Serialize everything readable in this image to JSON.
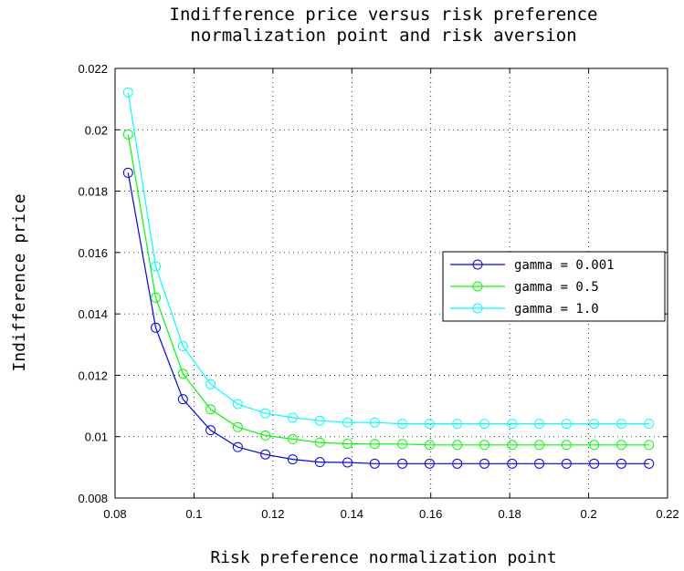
{
  "chart_data": {
    "type": "line",
    "title_lines": [
      "Indifference price versus risk preference",
      "normalization point and risk aversion"
    ],
    "xlabel": "Risk preference normalization point",
    "ylabel": "Indifference price",
    "xlim": [
      0.08,
      0.22
    ],
    "ylim": [
      0.008,
      0.022
    ],
    "xticks": [
      0.08,
      0.1,
      0.12,
      0.14,
      0.16,
      0.18,
      0.2,
      0.22
    ],
    "xtick_labels": [
      "0.08",
      "0.1",
      "0.12",
      "0.14",
      "0.16",
      "0.18",
      "0.2",
      "0.22"
    ],
    "yticks": [
      0.008,
      0.01,
      0.012,
      0.014,
      0.016,
      0.018,
      0.02,
      0.022
    ],
    "ytick_labels": [
      "0.008",
      "0.01",
      "0.012",
      "0.014",
      "0.016",
      "0.018",
      "0.02",
      "0.022"
    ],
    "grid": true,
    "legend_position": "right",
    "x": [
      0.0833,
      0.0903,
      0.0972,
      0.1042,
      0.1111,
      0.1181,
      0.125,
      0.1319,
      0.1389,
      0.1458,
      0.1528,
      0.1597,
      0.1667,
      0.1736,
      0.1806,
      0.1875,
      0.1944,
      0.2014,
      0.2083,
      0.2153
    ],
    "series": [
      {
        "name": "gamma = 0.001",
        "color": "#0000ff",
        "values": [
          0.0186,
          0.01355,
          0.01122,
          0.01021,
          0.00966,
          0.00942,
          0.00926,
          0.00917,
          0.00916,
          0.00912,
          0.00912,
          0.00912,
          0.00912,
          0.00912,
          0.00912,
          0.00912,
          0.00912,
          0.00912,
          0.00912,
          0.00912
        ]
      },
      {
        "name": "gamma = 0.5",
        "color": "#00ff00",
        "values": [
          0.01985,
          0.01453,
          0.01205,
          0.01089,
          0.01031,
          0.01004,
          0.00992,
          0.00981,
          0.00977,
          0.00976,
          0.00976,
          0.00973,
          0.00973,
          0.00973,
          0.00973,
          0.00973,
          0.00973,
          0.00973,
          0.00973,
          0.00973
        ]
      },
      {
        "name": "gamma = 1.0",
        "color": "#00ffff",
        "values": [
          0.02122,
          0.01555,
          0.01295,
          0.01171,
          0.01106,
          0.01076,
          0.01062,
          0.01052,
          0.01046,
          0.01046,
          0.01042,
          0.01042,
          0.01042,
          0.01042,
          0.01042,
          0.01042,
          0.01042,
          0.01042,
          0.01042,
          0.01042
        ]
      }
    ]
  }
}
